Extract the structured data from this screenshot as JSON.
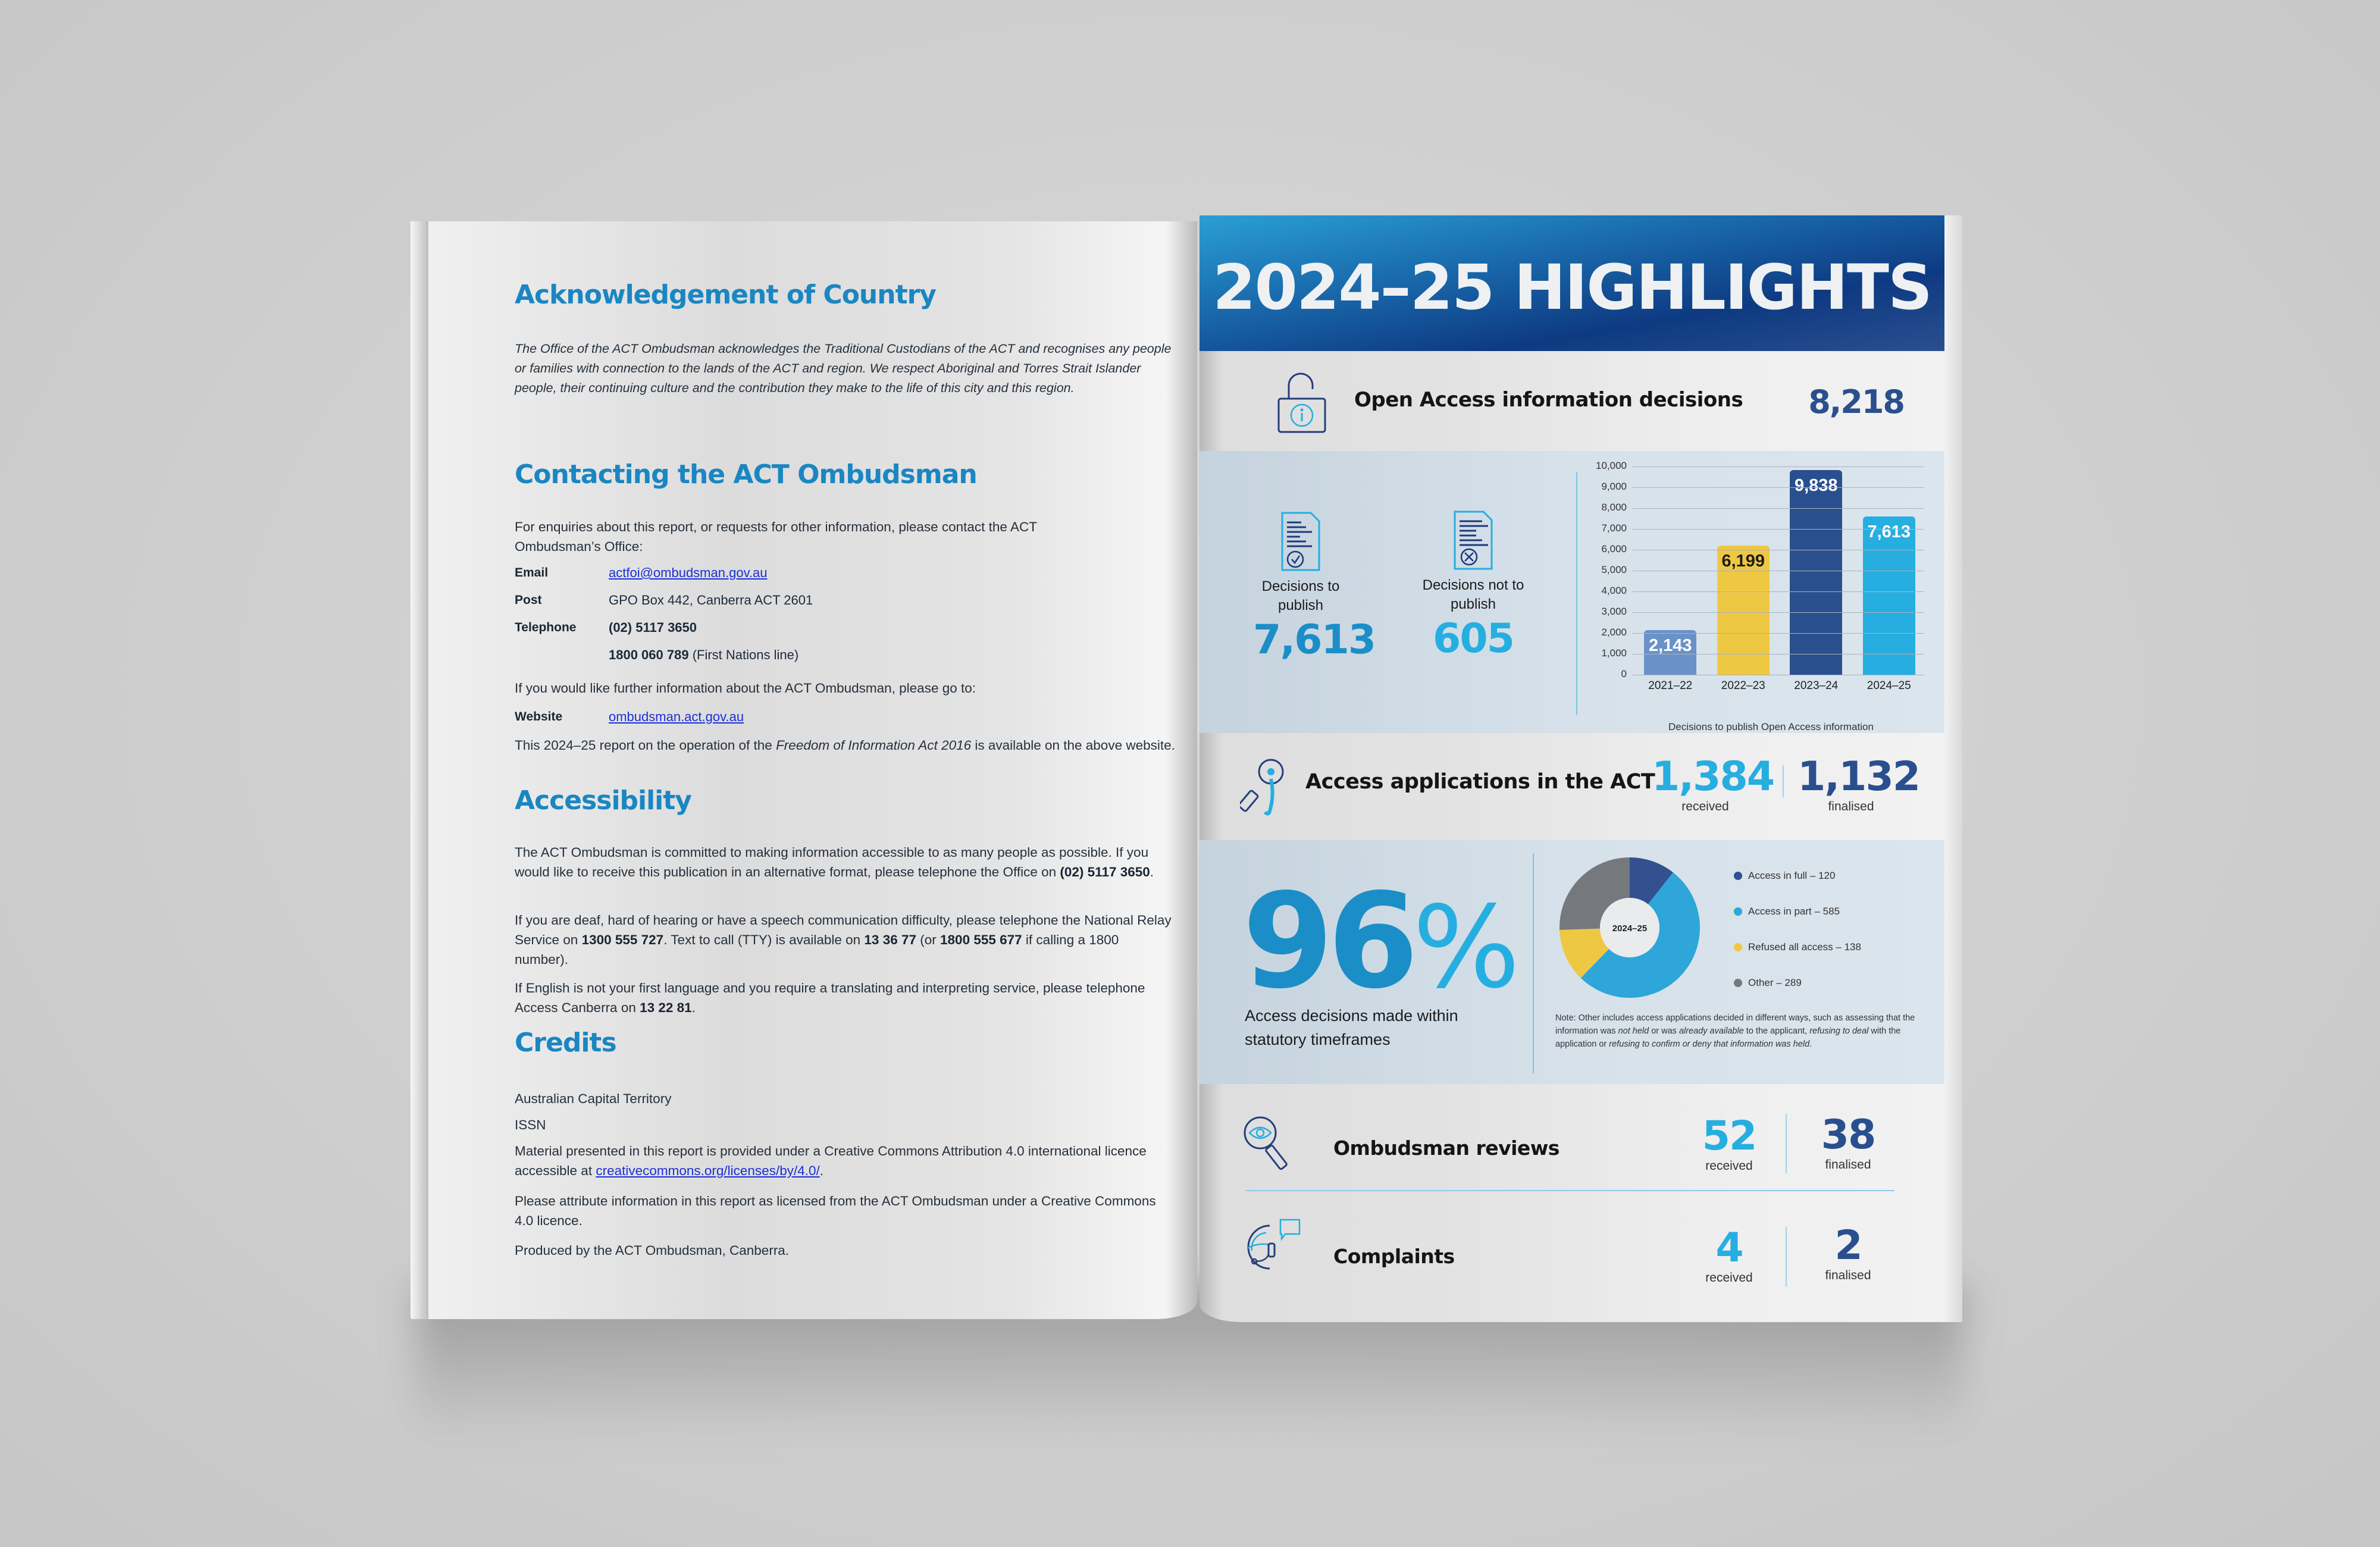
{
  "left_page": {
    "acknowledgement": {
      "heading": "Acknowledgement of Country",
      "text": "The Office of the ACT Ombudsman acknowledges the Traditional Custodians of the ACT and recognises any people or families with connection to the lands of the ACT and region. We respect Aboriginal and Torres Strait Islander people, their continuing culture and the contribution they make to the life of this city and this region."
    },
    "contacting": {
      "heading": "Contacting the ACT Ombudsman",
      "intro": "For enquiries about this report, or requests for other information, please contact the ACT Ombudsman’s Office:",
      "email_label": "Email",
      "email_value": "actfoi@ombudsman.gov.au",
      "post_label": "Post",
      "post_value": "GPO Box 442, Canberra ACT 2601",
      "telephone_label": "Telephone",
      "telephone_value": "(02) 5117 3650",
      "first_nations_number": "1800 060 789",
      "first_nations_suffix": " (First Nations line)",
      "further_info": "If you would like further information about the ACT Ombudsman, please go to:",
      "website_label": "Website",
      "website_value": "ombudsman.act.gov.au",
      "report_prefix": "This 2024–25 report on the operation of the ",
      "report_act": "Freedom of Information Act 2016",
      "report_suffix": " is available on the above website."
    },
    "accessibility": {
      "heading": "Accessibility",
      "p1_text": "The ACT Ombudsman is committed to making information accessible to as many people as possible. If you would like to receive this publication in an alternative format, please telephone the Office on ",
      "p1_phone": "(02) 5117 3650",
      "p2_a": "If you are deaf, hard of hearing or have a speech communication difficulty, please telephone the National Relay Service on ",
      "p2_nrs": "1300 555 727",
      "p2_b": ". Text to call (TTY) is available on ",
      "p2_tty": "13 36 77",
      "p2_c": " (or ",
      "p2_alt": "1800 555 677",
      "p2_d": " if calling a 1800 number).",
      "p3_text": "If English is not your first language and you require a translating and interpreting service, please telephone Access Canberra on ",
      "p3_phone": "13 22 81"
    },
    "credits": {
      "heading": "Credits",
      "line1": "Australian Capital Territory",
      "line2": "ISSN",
      "licence_text": "Material presented in this report is provided under a Creative Commons Attribution 4.0 international licence accessible at ",
      "licence_link": "creativecommons.org/licenses/by/4.0/",
      "attribute": "Please attribute information in this report as licensed from the ACT Ombudsman under a Creative Commons 4.0 licence.",
      "produced": "Produced by the ACT Ombudsman, Canberra."
    }
  },
  "right_page": {
    "title": "2024–25 HIGHLIGHTS",
    "open_access": {
      "icon": "padlock-info-icon",
      "label": "Open Access information decisions",
      "value": "8,218"
    },
    "publish": {
      "to_publish_label": "Decisions to publish",
      "to_publish_value": "7,613",
      "not_publish_label": "Decisions not to publish",
      "not_publish_value": "605"
    },
    "access_applications": {
      "icon": "magnifier-info-icon",
      "label": "Access applications in the ACT",
      "received_value": "1,384",
      "received_label": "received",
      "finalised_value": "1,132",
      "finalised_label": "finalised"
    },
    "timeframes": {
      "percent_number": "96",
      "percent_sign": "%",
      "label": "Access decisions made within statutory timeframes"
    },
    "donut_note": {
      "prefix": "Note: Other includes access applications decided in different ways, such as assessing that the information was ",
      "i1": "not held",
      "m1": " or was ",
      "i2": "already available",
      "m2": " to the applicant, ",
      "i3": "refusing to deal",
      "m3": " with the application or ",
      "i4": "refusing to confirm or deny that information was held",
      "suffix": "."
    },
    "ombudsman_reviews": {
      "icon": "eye-magnifier-icon",
      "label": "Ombudsman reviews",
      "received_value": "52",
      "received_label": "received",
      "finalised_value": "38",
      "finalised_label": "finalised"
    },
    "complaints": {
      "icon": "headset-chat-icon",
      "label": "Complaints",
      "received_value": "4",
      "received_label": "received",
      "finalised_value": "2",
      "finalised_label": "finalised"
    },
    "colors": {
      "brand_blue": "#1a86c2",
      "light_blue": "#26aee0",
      "dark_blue": "#2a4f8e",
      "yellow": "#efc843",
      "grey": "#75787d",
      "steel_blue": "#6a92c9"
    }
  },
  "chart_data": [
    {
      "type": "bar",
      "title": "",
      "xlabel": "Decisions to publish Open Access information",
      "ylabel": "",
      "categories": [
        "2021–22",
        "2022–23",
        "2023–24",
        "2024–25"
      ],
      "values": [
        2143,
        6199,
        9838,
        7613
      ],
      "value_labels": [
        "2,143",
        "6,199",
        "9,838",
        "7,613"
      ],
      "bar_colors": [
        "#6a92c9",
        "#efc843",
        "#2a4f8e",
        "#26aee0"
      ],
      "yticks": [
        "0",
        "1,000",
        "2,000",
        "3,000",
        "4,000",
        "5,000",
        "6,000",
        "7,000",
        "8,000",
        "9,000",
        "10,000"
      ],
      "ylim": [
        0,
        10000
      ],
      "grid": true,
      "legend": "none"
    },
    {
      "type": "pie",
      "variant": "donut",
      "center_label": "2024–25",
      "categories": [
        "Access in full",
        "Access in part",
        "Refused all access",
        "Other"
      ],
      "values": [
        120,
        585,
        138,
        289
      ],
      "legend_labels": [
        "Access in full – 120",
        "Access in part – 585",
        "Refused all access – 138",
        "Other – 289"
      ],
      "colors": [
        "#33508f",
        "#2ea6d9",
        "#efc843",
        "#75787d"
      ],
      "legend_position": "right"
    }
  ]
}
